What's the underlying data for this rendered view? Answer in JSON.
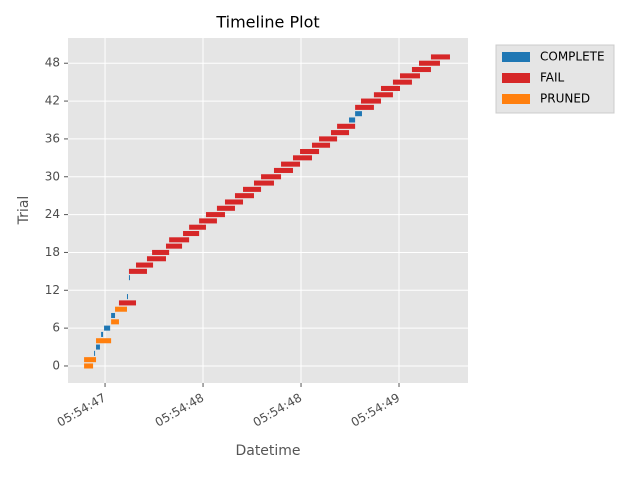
{
  "chart_data": {
    "type": "timeline",
    "title": "Timeline Plot",
    "x_label": "Datetime",
    "y_label": "Trial",
    "xlim": [
      46.811,
      48.852
    ],
    "ylim": [
      -2.7,
      52
    ],
    "xticks": [
      {
        "value": 47.0,
        "label": "05:54:47"
      },
      {
        "value": 47.5,
        "label": "05:54:48"
      },
      {
        "value": 48.0,
        "label": "05:54:48"
      },
      {
        "value": 48.5,
        "label": "05:54:49"
      }
    ],
    "yticks": [
      0,
      6,
      12,
      18,
      24,
      30,
      36,
      42,
      48
    ],
    "grid": true,
    "legend": "outside-right",
    "series": [
      {
        "name": "COMPLETE",
        "color": "#1f77b4",
        "trials": [
          2,
          3,
          5,
          6,
          8,
          11,
          14,
          39,
          40
        ],
        "start": [
          46.944,
          46.954,
          46.98,
          46.995,
          47.031,
          47.112,
          47.122,
          48.245,
          48.276
        ],
        "end": [
          46.947,
          46.974,
          46.99,
          47.026,
          47.051,
          47.117,
          47.125,
          48.276,
          48.311
        ]
      },
      {
        "name": "FAIL",
        "color": "#d62728",
        "trials": [
          10,
          15,
          16,
          17,
          18,
          19,
          20,
          21,
          22,
          23,
          24,
          25,
          26,
          27,
          28,
          29,
          30,
          31,
          32,
          33,
          34,
          35,
          36,
          37,
          38,
          41,
          42,
          43,
          44,
          45,
          46,
          47,
          48,
          49
        ],
        "start": [
          47.071,
          47.122,
          47.158,
          47.214,
          47.24,
          47.311,
          47.327,
          47.398,
          47.429,
          47.48,
          47.515,
          47.571,
          47.612,
          47.663,
          47.704,
          47.76,
          47.796,
          47.862,
          47.898,
          47.959,
          47.995,
          48.056,
          48.092,
          48.153,
          48.184,
          48.276,
          48.306,
          48.372,
          48.408,
          48.469,
          48.505,
          48.566,
          48.602,
          48.663
        ],
        "end": [
          47.158,
          47.214,
          47.245,
          47.311,
          47.327,
          47.393,
          47.429,
          47.48,
          47.515,
          47.571,
          47.612,
          47.663,
          47.704,
          47.76,
          47.796,
          47.862,
          47.898,
          47.959,
          47.995,
          48.056,
          48.092,
          48.148,
          48.184,
          48.245,
          48.276,
          48.372,
          48.408,
          48.469,
          48.505,
          48.566,
          48.607,
          48.663,
          48.709,
          48.76
        ]
      },
      {
        "name": "PRUNED",
        "color": "#ff7f0e",
        "trials": [
          0,
          1,
          4,
          7,
          9
        ],
        "start": [
          46.893,
          46.893,
          46.954,
          47.031,
          47.051
        ],
        "end": [
          46.939,
          46.954,
          47.031,
          47.071,
          47.112
        ]
      }
    ]
  }
}
